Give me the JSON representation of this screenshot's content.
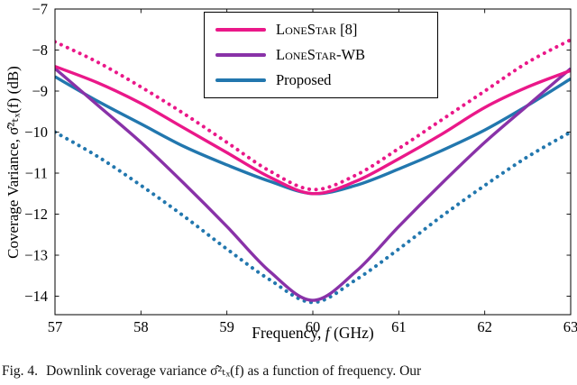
{
  "figure": {
    "caption": {
      "label": "Fig. 4.",
      "text": "Downlink coverage variance σ̂²ₜₓ(f) as a function of frequency. Our"
    }
  },
  "chart_data": {
    "type": "line",
    "title": "",
    "xlabel": {
      "prefix": "Frequency, ",
      "var": "f",
      "suffix": " (GHz)"
    },
    "ylabel": "Coverage Variance, σ̂²ₜₓ(f)  (dB)",
    "xlim": [
      57,
      63
    ],
    "ylim": [
      -14.45,
      -7
    ],
    "xticks": [
      57,
      58,
      59,
      60,
      61,
      62,
      63
    ],
    "yticks": [
      -7,
      -8,
      -9,
      -10,
      -11,
      -12,
      -13,
      -14
    ],
    "grid": false,
    "colors": {
      "lonestar": "#EA1889",
      "lonestar_wb": "#8932A8",
      "proposed": "#2277AE"
    },
    "legend": {
      "position": "top-center",
      "entries": [
        {
          "label": "LoneStar [8]",
          "color": "#EA1889",
          "small_caps": true
        },
        {
          "label": "LoneStar-WB",
          "color": "#8932A8",
          "small_caps": true
        },
        {
          "label": "Proposed",
          "color": "#2277AE",
          "small_caps": false
        }
      ]
    },
    "x": [
      57,
      57.5,
      58,
      58.5,
      59,
      59.5,
      60,
      60.5,
      61,
      61.5,
      62,
      62.5,
      63
    ],
    "series": [
      {
        "name": "proposed-dotted",
        "color": "#2277AE",
        "style": "dotted",
        "values": [
          -10.0,
          -10.6,
          -11.3,
          -12.05,
          -12.85,
          -13.6,
          -14.15,
          -13.6,
          -12.85,
          -12.05,
          -11.3,
          -10.6,
          -10.0
        ]
      },
      {
        "name": "proposed",
        "color": "#2277AE",
        "style": "solid",
        "values": [
          -8.65,
          -9.25,
          -9.8,
          -10.35,
          -10.8,
          -11.2,
          -11.5,
          -11.3,
          -10.9,
          -10.45,
          -9.95,
          -9.35,
          -8.7
        ]
      },
      {
        "name": "lonestar-wb",
        "color": "#8932A8",
        "style": "solid",
        "values": [
          -8.45,
          -9.35,
          -10.25,
          -11.25,
          -12.3,
          -13.4,
          -14.1,
          -13.4,
          -12.3,
          -11.25,
          -10.25,
          -9.35,
          -8.45
        ]
      },
      {
        "name": "lonestar",
        "color": "#EA1889",
        "style": "solid",
        "values": [
          -8.4,
          -8.8,
          -9.3,
          -9.9,
          -10.5,
          -11.1,
          -11.5,
          -11.2,
          -10.65,
          -10.05,
          -9.4,
          -8.9,
          -8.5
        ]
      },
      {
        "name": "lonestar-dotted",
        "color": "#EA1889",
        "style": "dotted",
        "values": [
          -7.8,
          -8.3,
          -8.9,
          -9.55,
          -10.25,
          -10.95,
          -11.4,
          -11.05,
          -10.4,
          -9.7,
          -9.0,
          -8.3,
          -7.75
        ]
      }
    ]
  }
}
